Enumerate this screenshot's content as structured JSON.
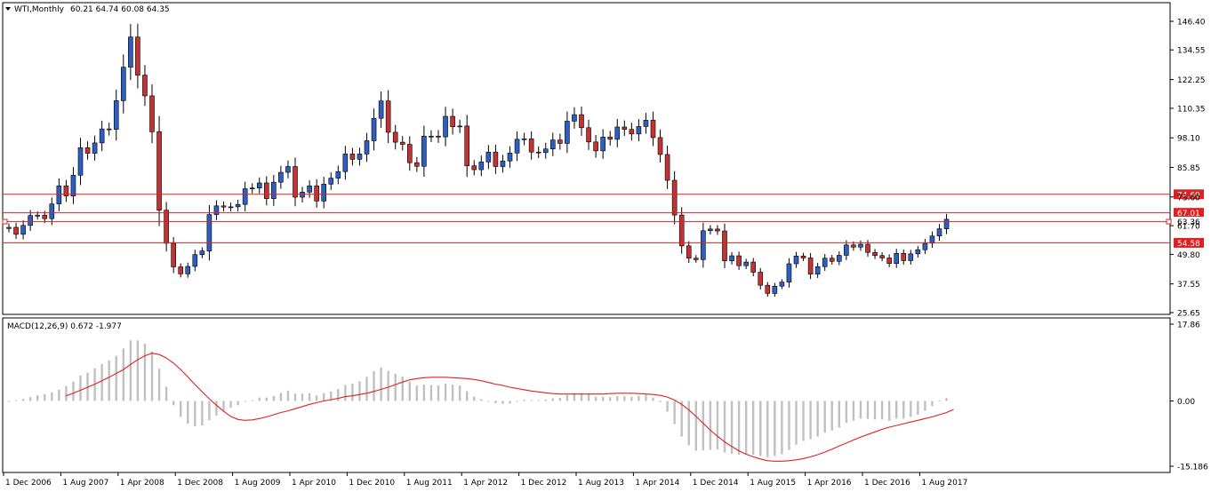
{
  "header": {
    "symbol": "WTI,Monthly",
    "ohlc": "60.21 64.74 60.08 64.35"
  },
  "indicator": {
    "label": "MACD(12,26,9) 0.672 -1.977"
  },
  "colors": {
    "bull": "#2e5fbf",
    "bear": "#c43333",
    "candle_outline": "#000000",
    "hline": "#e02020",
    "histogram": "#c0c0c0",
    "signal": "#e02020",
    "tag_bg": "#e02020"
  },
  "chart_data": [
    {
      "type": "candlestick",
      "title": "WTI,Monthly",
      "y_axis_ticks": [
        "146.40",
        "134.55",
        "122.25",
        "110.35",
        "98.10",
        "85.85",
        "73.60",
        "61.70",
        "49.80",
        "37.55",
        "25.65"
      ],
      "ylim": [
        25.65,
        146.4
      ],
      "x_axis_ticks": [
        "1 Dec 2006",
        "1 Aug 2007",
        "1 Apr 2008",
        "1 Dec 2008",
        "1 Aug 2009",
        "1 Apr 2010",
        "1 Dec 2010",
        "1 Aug 2011",
        "1 Apr 2012",
        "1 Dec 2012",
        "1 Aug 2013",
        "1 Apr 2014",
        "1 Dec 2014",
        "1 Aug 2015",
        "1 Apr 2016",
        "1 Dec 2016",
        "1 Aug 2017"
      ],
      "horizontal_levels": [
        "74.69",
        "67.01",
        "63.36",
        "54.58"
      ],
      "highlighted_level": "63.36",
      "closes": [
        61.0,
        58.1,
        61.8,
        65.9,
        66.0,
        64.6,
        70.7,
        78.2,
        74.0,
        82.6,
        94.0,
        91.7,
        96.0,
        101.8,
        101.6,
        113.5,
        127.4,
        139.9,
        124.1,
        115.5,
        100.6,
        68.1,
        54.4,
        44.6,
        41.7,
        44.8,
        49.7,
        51.2,
        66.3,
        69.9,
        69.4,
        69.5,
        70.5,
        77.0,
        77.3,
        79.4,
        72.9,
        79.7,
        83.8,
        86.2,
        73.5,
        75.6,
        78.2,
        71.9,
        78.9,
        81.4,
        84.1,
        91.4,
        89.2,
        91.4,
        96.9,
        106.2,
        113.4,
        100.4,
        96.3,
        95.4,
        87.8,
        86.3,
        98.8,
        98.8,
        98.5,
        107.0,
        102.7,
        103.0,
        86.5,
        84.9,
        88.1,
        92.2,
        86.2,
        88.5,
        91.8,
        97.5,
        97.7,
        92.2,
        92.0,
        93.5,
        97.2,
        95.8,
        105.0,
        107.7,
        102.3,
        96.4,
        92.7,
        98.4,
        97.5,
        102.6,
        101.6,
        99.7,
        102.8,
        105.4,
        98.2,
        91.2,
        80.5,
        66.1,
        53.3,
        48.2,
        47.6,
        59.6,
        60.3,
        59.5,
        47.1,
        49.2,
        45.1,
        46.6,
        42.4,
        37.0,
        33.6,
        36.6,
        38.3,
        45.9,
        49.1,
        48.3,
        41.6,
        44.7,
        48.2,
        46.9,
        49.4,
        53.7,
        52.8,
        54.0,
        50.6,
        49.3,
        48.3,
        46.0,
        50.2,
        47.2,
        50.0,
        51.7,
        54.4,
        57.4,
        60.4,
        64.35
      ],
      "macd_hist_ylim": [
        -15.186,
        17.86
      ],
      "macd_ticks": [
        "17.86",
        "0.00",
        "-15.186"
      ],
      "macd_histogram": [
        0.0,
        0.2,
        0.5,
        0.9,
        1.3,
        1.6,
        2.0,
        2.6,
        3.5,
        4.5,
        5.9,
        6.6,
        7.6,
        8.6,
        9.4,
        10.5,
        12.2,
        14.1,
        14.1,
        13.3,
        11.5,
        7.5,
        3.3,
        -1.0,
        -3.7,
        -5.3,
        -5.9,
        -5.7,
        -4.5,
        -3.4,
        -2.5,
        -1.6,
        -1.0,
        -0.2,
        0.2,
        0.8,
        0.8,
        1.2,
        1.9,
        2.4,
        1.7,
        1.7,
        1.8,
        1.3,
        1.8,
        2.2,
        2.8,
        3.7,
        4.0,
        4.6,
        5.6,
        6.9,
        7.8,
        7.0,
        6.3,
        5.7,
        4.5,
        3.6,
        3.8,
        3.7,
        3.6,
        4.0,
        3.8,
        3.6,
        2.3,
        1.0,
        0.4,
        0.0,
        -0.5,
        -0.7,
        -0.6,
        -0.1,
        0.3,
        0.2,
        0.2,
        0.3,
        0.6,
        0.7,
        1.4,
        1.8,
        1.8,
        1.5,
        1.0,
        1.0,
        0.9,
        1.1,
        1.1,
        1.0,
        1.2,
        1.4,
        0.8,
        -0.3,
        -2.5,
        -5.4,
        -8.3,
        -10.3,
        -11.6,
        -11.5,
        -11.4,
        -11.3,
        -12.0,
        -12.3,
        -12.5,
        -12.5,
        -12.5,
        -12.8,
        -13.1,
        -12.8,
        -12.4,
        -11.4,
        -10.2,
        -9.3,
        -8.9,
        -8.3,
        -7.4,
        -6.9,
        -6.2,
        -5.1,
        -4.6,
        -4.1,
        -4.2,
        -4.3,
        -4.3,
        -4.6,
        -4.1,
        -4.1,
        -3.7,
        -3.2,
        -2.3,
        -1.2,
        0.1,
        0.672
      ],
      "macd_signal": [
        null,
        null,
        null,
        null,
        null,
        null,
        null,
        null,
        1.2,
        1.8,
        2.5,
        3.2,
        3.9,
        4.7,
        5.5,
        6.4,
        7.3,
        8.5,
        9.6,
        10.5,
        11.1,
        10.8,
        10.0,
        8.8,
        7.3,
        5.6,
        3.8,
        2.1,
        0.5,
        -1.0,
        -2.4,
        -3.6,
        -4.3,
        -4.5,
        -4.4,
        -4.1,
        -3.7,
        -3.2,
        -2.7,
        -2.3,
        -1.8,
        -1.3,
        -0.8,
        -0.4,
        -0.0,
        0.3,
        0.6,
        1.0,
        1.2,
        1.5,
        1.8,
        2.2,
        2.7,
        3.2,
        3.8,
        4.4,
        4.9,
        5.2,
        5.4,
        5.5,
        5.5,
        5.5,
        5.4,
        5.3,
        5.2,
        5.0,
        4.7,
        4.3,
        3.9,
        3.6,
        3.2,
        2.9,
        2.6,
        2.3,
        2.1,
        1.9,
        1.7,
        1.6,
        1.6,
        1.6,
        1.6,
        1.6,
        1.6,
        1.6,
        1.7,
        1.8,
        1.8,
        1.8,
        1.7,
        1.6,
        1.5,
        1.3,
        0.9,
        0.2,
        -0.8,
        -2.1,
        -3.6,
        -5.2,
        -6.8,
        -8.2,
        -9.5,
        -10.6,
        -11.6,
        -12.4,
        -13.0,
        -13.5,
        -13.9,
        -14.0,
        -14.0,
        -13.9,
        -13.7,
        -13.4,
        -13.0,
        -12.5,
        -11.9,
        -11.2,
        -10.5,
        -9.8,
        -9.1,
        -8.4,
        -7.8,
        -7.2,
        -6.6,
        -6.1,
        -5.7,
        -5.3,
        -4.9,
        -4.5,
        -4.1,
        -3.7,
        -3.2,
        -2.7,
        -1.977
      ]
    }
  ]
}
